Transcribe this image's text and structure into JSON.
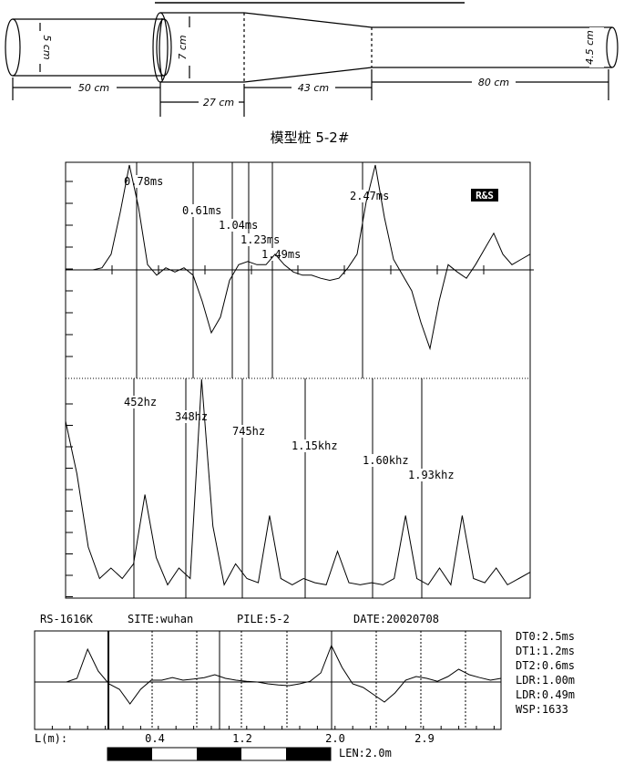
{
  "pile_diagram": {
    "title": "模型桩 5-2#",
    "segments": [
      {
        "diameter": "5 cm",
        "length": "50 cm"
      },
      {
        "diameter": "7 cm",
        "length": "27 cm"
      },
      {
        "diameter": "",
        "length": "43 cm"
      },
      {
        "diameter": "4.5 cm",
        "length": "80 cm"
      }
    ]
  },
  "chart_data": [
    {
      "type": "line",
      "name": "time-domain",
      "badge": "R&S",
      "markers": [
        {
          "label": "0.78ms"
        },
        {
          "label": "0.61ms"
        },
        {
          "label": "1.04ms"
        },
        {
          "label": "1.23ms"
        },
        {
          "label": "1.49ms"
        },
        {
          "label": "2.47ms"
        }
      ],
      "series": [
        {
          "values": [
            0,
            0,
            0,
            0,
            0.02,
            0.15,
            0.55,
            1.0,
            0.6,
            0.05,
            -0.05,
            0.02,
            -0.02,
            0.02,
            -0.05,
            -0.3,
            -0.6,
            -0.45,
            -0.1,
            0.05,
            0.08,
            0.05,
            0.05,
            0.15,
            0.05,
            -0.02,
            -0.05,
            -0.05,
            -0.08,
            -0.1,
            -0.08,
            0.02,
            0.15,
            0.65,
            1.0,
            0.5,
            0.1,
            -0.05,
            -0.2,
            -0.5,
            -0.75,
            -0.3,
            0.05,
            -0.02,
            -0.08,
            0.05,
            0.2,
            0.35,
            0.15,
            0.05,
            0.1,
            0.15
          ]
        }
      ]
    },
    {
      "type": "line",
      "name": "frequency-spectrum",
      "markers": [
        {
          "label": "452hz"
        },
        {
          "label": "348hz"
        },
        {
          "label": "745hz"
        },
        {
          "label": "1.15khz"
        },
        {
          "label": "1.60khz"
        },
        {
          "label": "1.93khz"
        }
      ],
      "series": [
        {
          "values": [
            0.8,
            0.55,
            0.2,
            0.05,
            0.1,
            0.05,
            0.12,
            0.45,
            0.15,
            0.02,
            0.1,
            0.05,
            1.0,
            0.3,
            0.02,
            0.12,
            0.05,
            0.03,
            0.35,
            0.05,
            0.02,
            0.05,
            0.03,
            0.02,
            0.18,
            0.03,
            0.02,
            0.03,
            0.02,
            0.05,
            0.35,
            0.05,
            0.02,
            0.1,
            0.02,
            0.35,
            0.05,
            0.03,
            0.1,
            0.02,
            0.05,
            0.08
          ]
        }
      ]
    },
    {
      "type": "line",
      "name": "reflectogram",
      "series": [
        {
          "values": [
            0,
            0,
            0,
            0,
            0.1,
            0.9,
            0.3,
            -0.05,
            -0.2,
            -0.6,
            -0.2,
            0.05,
            0.05,
            0.12,
            0.05,
            0.08,
            0.12,
            0.2,
            0.1,
            0.05,
            0.02,
            0,
            -0.05,
            -0.08,
            -0.1,
            -0.05,
            0.02,
            0.25,
            1.0,
            0.4,
            -0.05,
            -0.15,
            -0.35,
            -0.55,
            -0.3,
            0.05,
            0.15,
            0.1,
            0.02,
            0.15,
            0.35,
            0.2,
            0.12,
            0.05,
            0.1
          ]
        }
      ],
      "xlabel": "L(m):",
      "x_ticks": [
        "0.4",
        "1.2",
        "2.0",
        "2.9"
      ],
      "length_label": "LEN:2.0m"
    }
  ],
  "header": {
    "model": "RS-1616K",
    "site": "SITE:wuhan",
    "pile": "PILE:5-2",
    "date": "DATE:20020708"
  },
  "params": [
    "DT0:2.5ms",
    "DT1:1.2ms",
    "DT2:0.6ms",
    "LDR:1.00m",
    "LDR:0.49m",
    "WSP:1633"
  ]
}
